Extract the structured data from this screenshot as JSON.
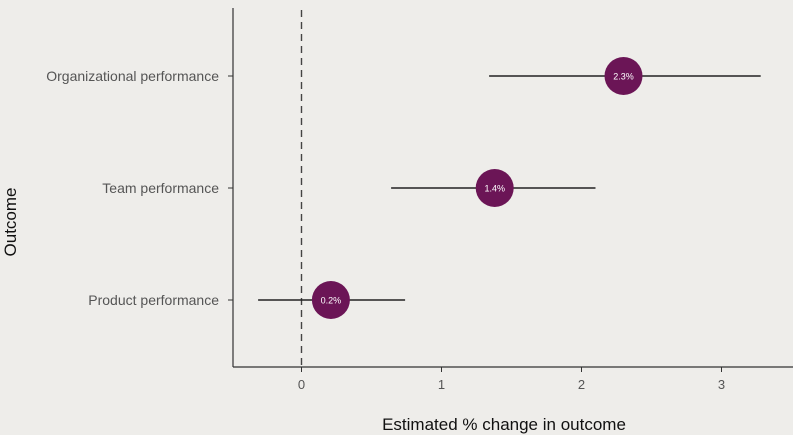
{
  "chart_data": {
    "type": "scatter",
    "subtype": "forest-plot",
    "xlabel": "Estimated % change in outcome",
    "ylabel": "Outcome",
    "xlim": [
      -0.5,
      3.5
    ],
    "xticks": [
      "0",
      "1",
      "2",
      "3"
    ],
    "xtick_values": [
      0,
      1,
      2,
      3
    ],
    "reference_line": 0,
    "reference_line_style": "dashed",
    "grid": false,
    "categories": [
      "Organizational performance",
      "Team performance",
      "Product performance"
    ],
    "series": [
      {
        "estimates": [
          2.3,
          1.38,
          0.21
        ],
        "lower": [
          1.34,
          0.64,
          -0.31
        ],
        "upper": [
          3.28,
          2.1,
          0.74
        ],
        "labels": [
          "2.3%",
          "1.4%",
          "0.2%"
        ]
      }
    ],
    "point_color": "#6b1556",
    "line_color": "#222222"
  }
}
